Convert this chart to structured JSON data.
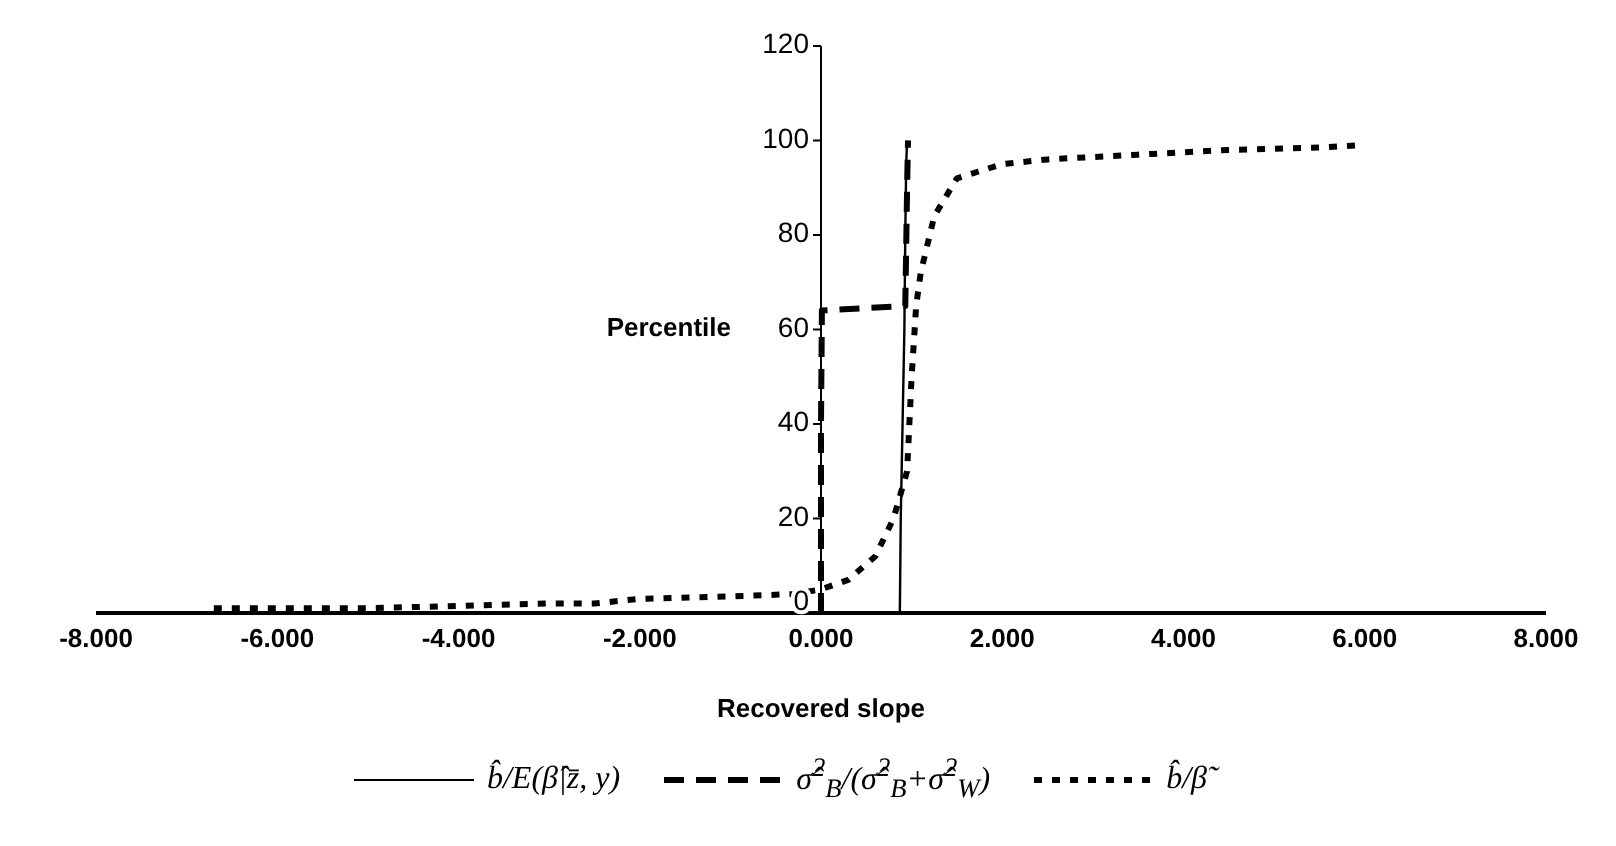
{
  "chart_data": {
    "type": "line",
    "xlabel": "Recovered slope",
    "ylabel": "Percentile",
    "xlim": [
      -8,
      8
    ],
    "xticks": [
      {
        "value": -8,
        "label": "-8.000"
      },
      {
        "value": -6,
        "label": "-6.000"
      },
      {
        "value": -4,
        "label": "-4.000"
      },
      {
        "value": -2,
        "label": "-2.000"
      },
      {
        "value": 0,
        "label": "0.000"
      },
      {
        "value": 2,
        "label": "2.000"
      },
      {
        "value": 4,
        "label": "4.000"
      },
      {
        "value": 6,
        "label": "6.000"
      },
      {
        "value": 8,
        "label": "8.000"
      }
    ],
    "ylim": [
      0,
      120
    ],
    "yticks": [
      0,
      20,
      40,
      60,
      80,
      100,
      120
    ],
    "legend": "bottom",
    "marker": "none",
    "series": [
      {
        "name": "b̂/E(β̂|z̄, y)",
        "color": "#000000",
        "line_style": "solid",
        "x": [
          0.87,
          0.88,
          0.9,
          0.92,
          0.93,
          0.94,
          0.95
        ],
        "values": [
          0,
          20,
          40,
          60,
          80,
          95,
          100
        ]
      },
      {
        "name": "σ̂$^{2}$$_{B}$/(σ̂$^{2}$$_{B}$+σ̂$^{2}$$_{W}$)",
        "color": "#000000",
        "line_style": "dashed",
        "x": [
          0,
          0,
          0.01,
          0.93,
          0.95,
          0.96
        ],
        "values": [
          0,
          40,
          64,
          65,
          90,
          100
        ]
      },
      {
        "name": "b̂/β̃",
        "color": "#000000",
        "line_style": "dotted",
        "x": [
          -6.7,
          -6,
          -5,
          -4,
          -3,
          -2.5,
          -2,
          -1,
          -0.3,
          0,
          0.3,
          0.6,
          0.8,
          0.95,
          1.0,
          1.05,
          1.1,
          1.25,
          1.5,
          2,
          2.5,
          3.5,
          4.5,
          5.5,
          5.95
        ],
        "values": [
          1,
          1,
          1,
          1.5,
          2,
          2,
          3,
          3.5,
          4,
          5,
          7,
          12,
          20,
          30,
          50,
          65,
          72,
          84,
          92,
          95,
          96,
          97,
          98,
          98.5,
          99
        ]
      }
    ]
  }
}
